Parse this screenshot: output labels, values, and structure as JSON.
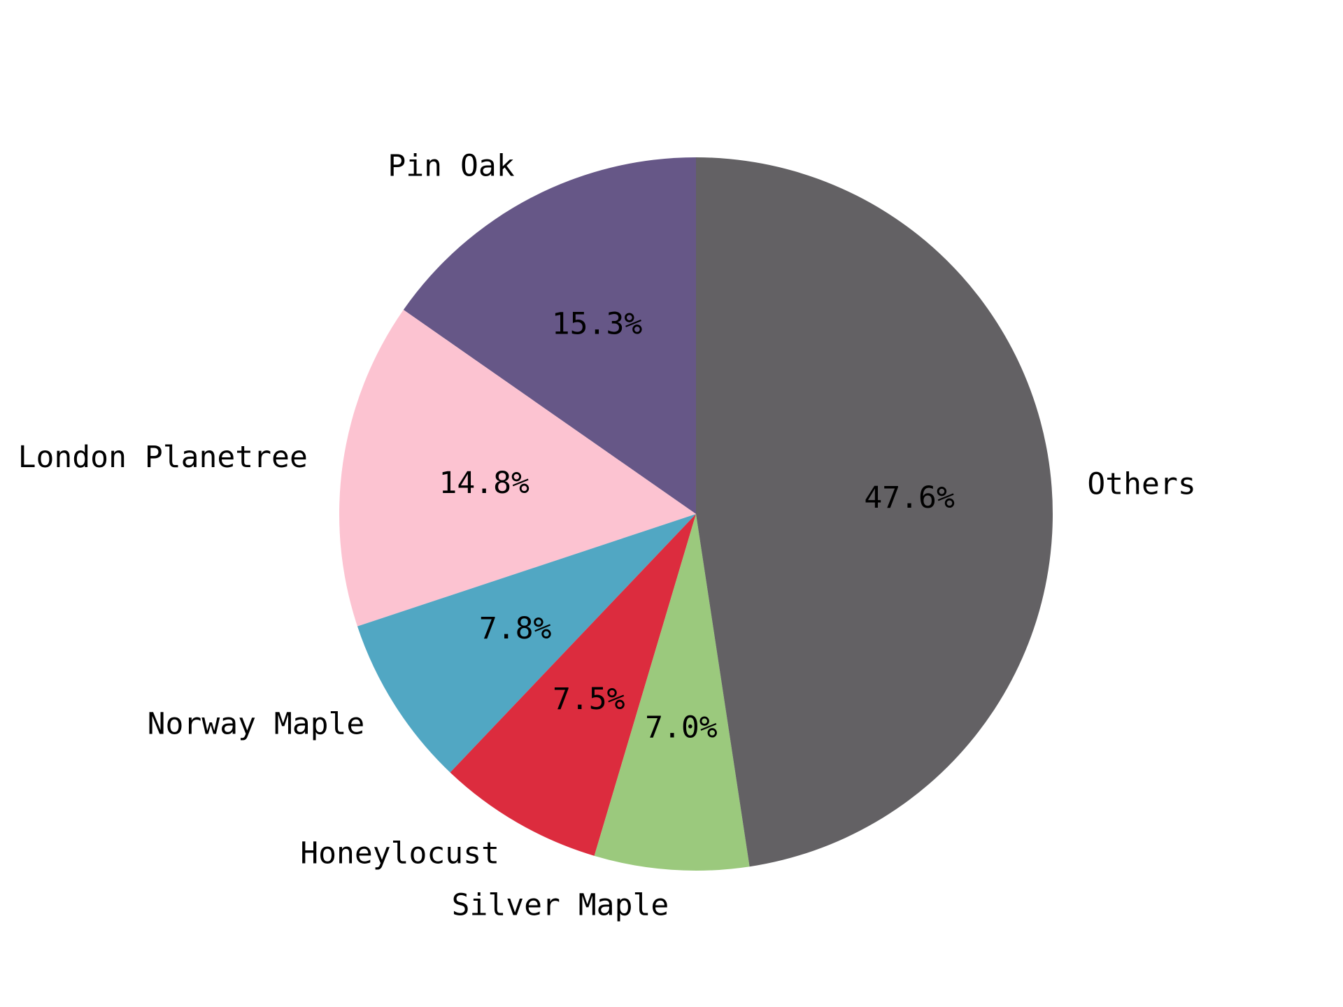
{
  "chart_data": {
    "type": "pie",
    "start_angle_deg": 90,
    "direction": "counterclockwise",
    "slices": [
      {
        "label": "Pin Oak",
        "value": 15.3,
        "pct_label": "15.3%",
        "color": "#665787"
      },
      {
        "label": "London Planetree",
        "value": 14.8,
        "pct_label": "14.8%",
        "color": "#fcc3d1"
      },
      {
        "label": "Norway Maple",
        "value": 7.8,
        "pct_label": "7.8%",
        "color": "#51a7c3"
      },
      {
        "label": "Honeylocust",
        "value": 7.5,
        "pct_label": "7.5%",
        "color": "#dc2c3e"
      },
      {
        "label": "Silver Maple",
        "value": 7.0,
        "pct_label": "7.0%",
        "color": "#9bc97d"
      },
      {
        "label": "Others",
        "value": 47.6,
        "pct_label": "47.6%",
        "color": "#636164"
      }
    ]
  }
}
